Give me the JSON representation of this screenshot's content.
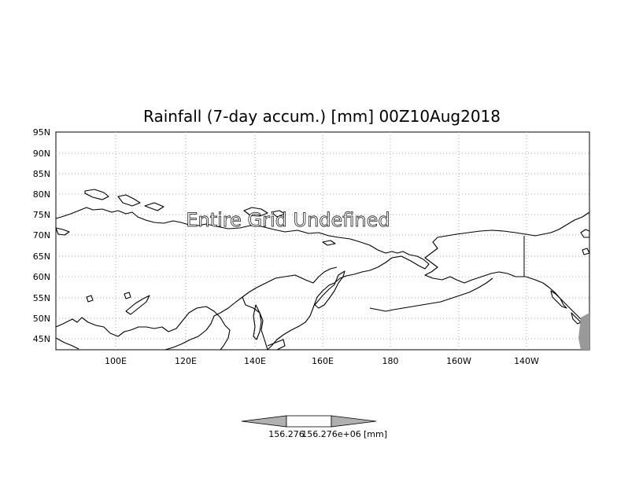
{
  "title": "Rainfall (7-day accum.) [mm] 00Z10Aug2018",
  "overlay_text": "Entire Grid Undefined",
  "latitude_labels": [
    "95N",
    "90N",
    "85N",
    "80N",
    "75N",
    "70N",
    "65N",
    "60N",
    "55N",
    "50N",
    "45N"
  ],
  "longitude_labels": [
    "100E",
    "120E",
    "140E",
    "160E",
    "180",
    "160W",
    "140W"
  ],
  "colorbar": {
    "left_label": "156.276",
    "center_label": "156.276e+06",
    "unit_label": "[mm]"
  },
  "colors": {
    "background": "#ffffff",
    "land_fill": "#999999",
    "colorbar_arrow": "#b0b0b0"
  }
}
